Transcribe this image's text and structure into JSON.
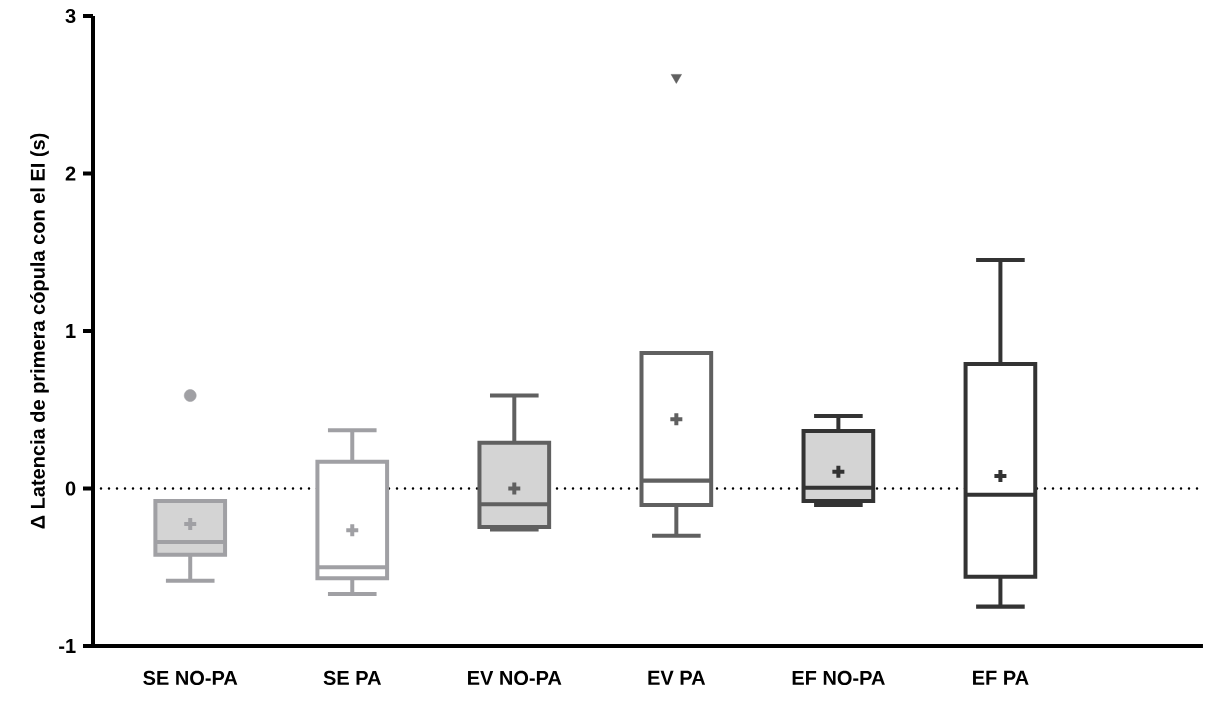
{
  "chart_data": {
    "type": "box",
    "ylabel": "Δ Latencia de primera cópula con el EI (s)",
    "categories": [
      "SE NO-PA",
      "SE PA",
      "EV NO-PA",
      "EV PA",
      "EF NO-PA",
      "EF PA"
    ],
    "ylim": [
      -1,
      3
    ],
    "yticks": [
      -1,
      0,
      1,
      2,
      3
    ],
    "series": [
      {
        "marker": "circle",
        "colors": [
          "#a0a0a4",
          null,
          "#606060",
          null,
          "#333333",
          null
        ],
        "boxes": [
          {
            "low": -0.585,
            "q1": -0.42,
            "median": -0.34,
            "q3": -0.08,
            "high": -0.08,
            "mean": -0.225,
            "outliers": [
              0.59
            ]
          },
          null,
          {
            "low": -0.26,
            "q1": -0.245,
            "median": -0.1,
            "q3": 0.29,
            "high": 0.59,
            "mean": 0.0
          },
          null,
          {
            "low": -0.105,
            "q1": -0.08,
            "median": 0.005,
            "q3": 0.365,
            "high": 0.46,
            "mean": 0.107
          },
          null
        ]
      },
      {
        "marker": "triangle",
        "colors": [
          null,
          "#a0a0a4",
          null,
          "#606060",
          null,
          "#333333"
        ],
        "boxes": [
          null,
          {
            "low": -0.67,
            "q1": -0.57,
            "median": -0.5,
            "q3": 0.17,
            "high": 0.37,
            "mean": -0.265
          },
          null,
          {
            "low": -0.3,
            "q1": -0.105,
            "median": 0.05,
            "q3": 0.86,
            "high": 0.86,
            "mean": 0.44,
            "outliers": [
              2.61
            ]
          },
          null,
          {
            "low": -0.75,
            "q1": -0.56,
            "median": -0.04,
            "q3": 0.79,
            "high": 1.45,
            "mean": 0.08
          }
        ]
      }
    ],
    "ref_lines": [
      {
        "axis": "y",
        "value": 0,
        "line_style": "dotted",
        "color": "#000000"
      }
    ]
  }
}
